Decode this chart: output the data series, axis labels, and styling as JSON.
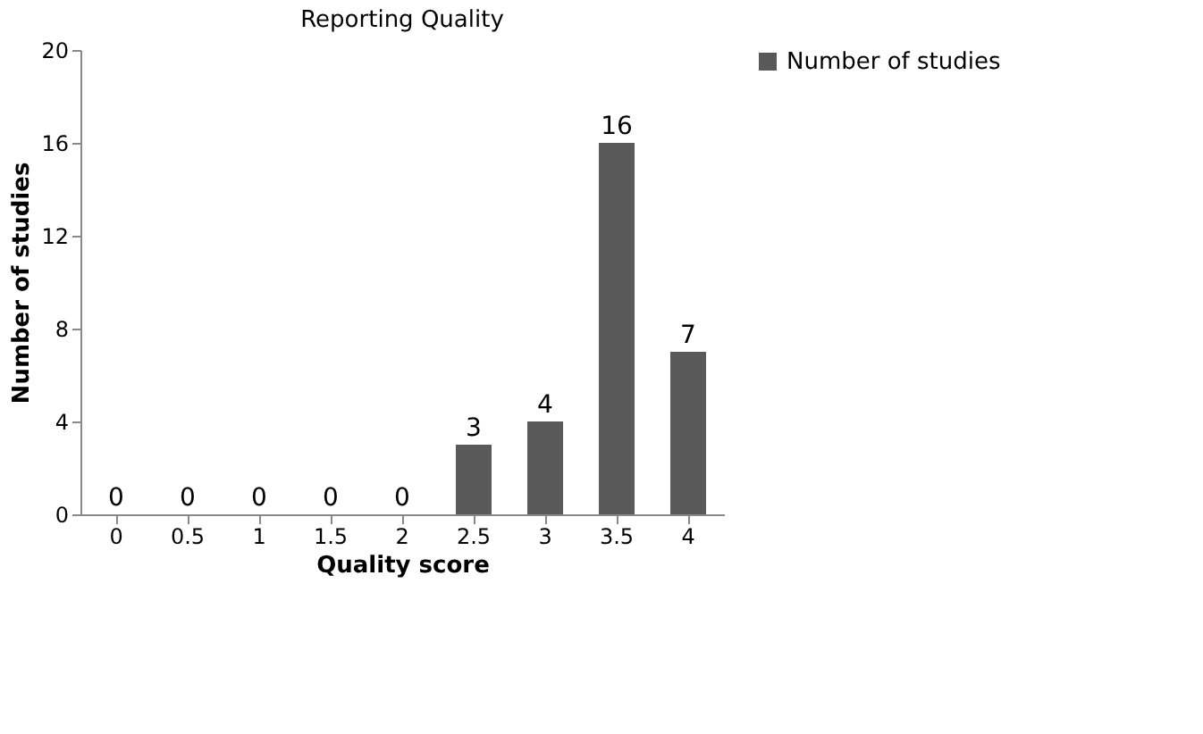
{
  "chart_data": {
    "type": "bar",
    "title": "Reporting Quality",
    "xlabel": "Quality score",
    "ylabel": "Number of studies",
    "categories": [
      "0",
      "0.5",
      "1",
      "1.5",
      "2",
      "2.5",
      "3",
      "3.5",
      "4"
    ],
    "series": [
      {
        "name": "Number of studies",
        "color": "#595959",
        "values": [
          0,
          0,
          0,
          0,
          0,
          3,
          4,
          16,
          7
        ]
      }
    ],
    "ylim": [
      0,
      20
    ],
    "yticks": [
      0,
      4,
      8,
      12,
      16,
      20
    ],
    "grid": false,
    "legend": "right",
    "data_labels": true
  }
}
